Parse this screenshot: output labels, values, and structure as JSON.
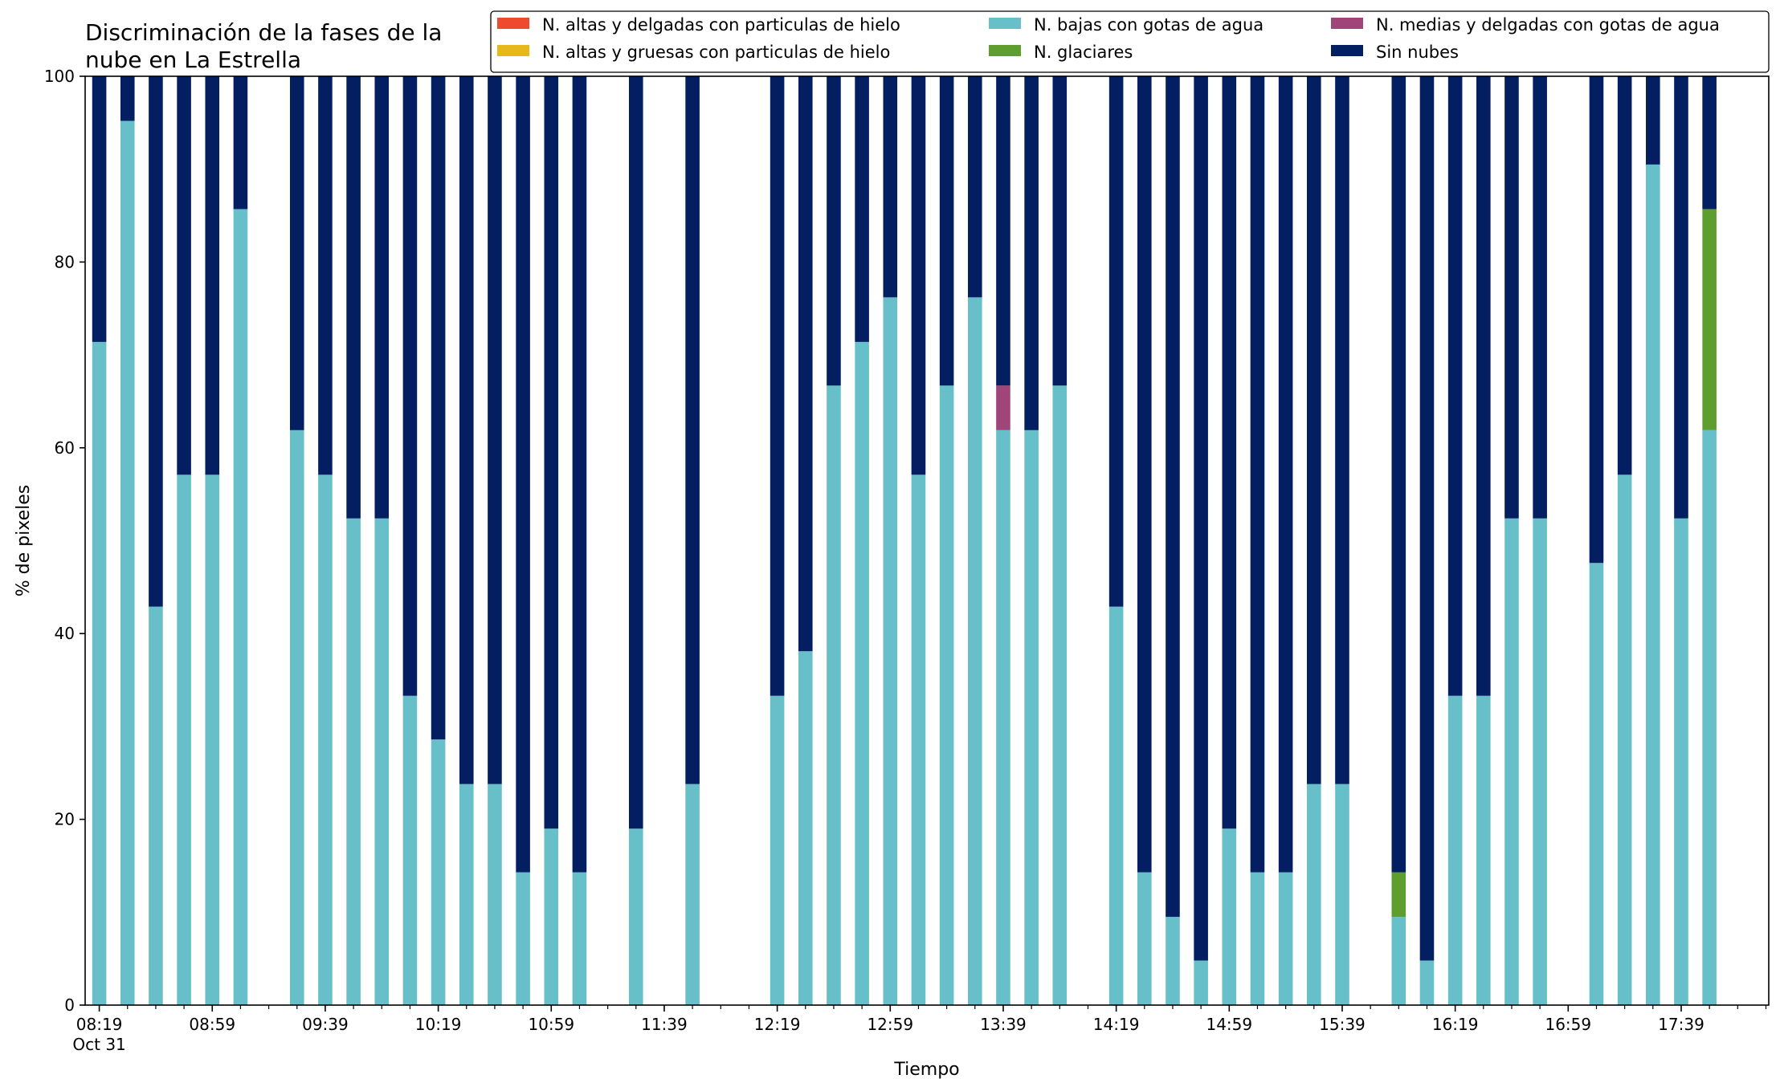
{
  "chart_data": {
    "type": "bar",
    "stacked": true,
    "title": "Discriminación de la fases de la\nnube en La Estrella",
    "xlabel": "Tiempo",
    "ylabel": "% de pixeles",
    "ylim": [
      0,
      100
    ],
    "yticks": [
      0,
      20,
      40,
      60,
      80,
      100
    ],
    "grid": false,
    "legend_position": "top-right",
    "x_date_label": "Oct 31",
    "x_start_minute": 499,
    "x_end_minute": 1080,
    "x_step_minutes": 10,
    "x_tick_labels": [
      {
        "minute": 499,
        "label": "08:19"
      },
      {
        "minute": 539,
        "label": "08:59"
      },
      {
        "minute": 579,
        "label": "09:39"
      },
      {
        "minute": 619,
        "label": "10:19"
      },
      {
        "minute": 659,
        "label": "10:59"
      },
      {
        "minute": 699,
        "label": "11:39"
      },
      {
        "minute": 739,
        "label": "12:19"
      },
      {
        "minute": 779,
        "label": "12:59"
      },
      {
        "minute": 819,
        "label": "13:39"
      },
      {
        "minute": 859,
        "label": "14:19"
      },
      {
        "minute": 899,
        "label": "14:59"
      },
      {
        "minute": 939,
        "label": "15:39"
      },
      {
        "minute": 979,
        "label": "16:19"
      },
      {
        "minute": 1019,
        "label": "16:59"
      },
      {
        "minute": 1059,
        "label": "17:39"
      }
    ],
    "series_order": [
      "ice_thin",
      "ice_thick",
      "low_water",
      "glacier",
      "mid_water",
      "clear"
    ],
    "series": [
      {
        "key": "ice_thin",
        "name": "N. altas y delgadas con particulas de hielo",
        "color": "#ef4a2d"
      },
      {
        "key": "ice_thick",
        "name": "N. altas y gruesas con particulas de hielo",
        "color": "#e6b81c"
      },
      {
        "key": "low_water",
        "name": "N. bajas con gotas de agua",
        "color": "#67bfca"
      },
      {
        "key": "glacier",
        "name": "N. glaciares",
        "color": "#5e9e2e"
      },
      {
        "key": "mid_water",
        "name": "N. medias y delgadas con gotas de agua",
        "color": "#a0457a"
      },
      {
        "key": "clear",
        "name": "Sin nubes",
        "color": "#031e61"
      }
    ],
    "data": [
      {
        "time": "08:19",
        "low_water": 71.4,
        "clear": 28.6
      },
      {
        "time": "08:29",
        "low_water": 95.2,
        "clear": 4.8
      },
      {
        "time": "08:39",
        "low_water": 42.9,
        "clear": 57.1
      },
      {
        "time": "08:49",
        "low_water": 57.1,
        "clear": 42.9
      },
      {
        "time": "08:59",
        "low_water": 57.1,
        "clear": 42.9
      },
      {
        "time": "09:09",
        "low_water": 85.7,
        "clear": 14.3
      },
      {
        "time": "09:29",
        "low_water": 61.9,
        "clear": 38.1
      },
      {
        "time": "09:39",
        "low_water": 57.1,
        "clear": 42.9
      },
      {
        "time": "09:49",
        "low_water": 52.4,
        "clear": 47.6
      },
      {
        "time": "09:59",
        "low_water": 52.4,
        "clear": 47.6
      },
      {
        "time": "10:09",
        "low_water": 33.3,
        "clear": 66.7
      },
      {
        "time": "10:19",
        "low_water": 28.6,
        "clear": 71.4
      },
      {
        "time": "10:29",
        "low_water": 23.8,
        "clear": 76.2
      },
      {
        "time": "10:39",
        "low_water": 23.8,
        "clear": 76.2
      },
      {
        "time": "10:49",
        "low_water": 14.3,
        "clear": 85.7
      },
      {
        "time": "10:59",
        "low_water": 19.0,
        "clear": 81.0
      },
      {
        "time": "11:09",
        "low_water": 14.3,
        "clear": 85.7
      },
      {
        "time": "11:29",
        "low_water": 19.0,
        "clear": 81.0
      },
      {
        "time": "11:49",
        "low_water": 23.8,
        "clear": 76.2
      },
      {
        "time": "12:19",
        "low_water": 33.3,
        "clear": 66.7
      },
      {
        "time": "12:29",
        "low_water": 38.1,
        "clear": 61.9
      },
      {
        "time": "12:39",
        "low_water": 66.7,
        "clear": 33.3
      },
      {
        "time": "12:49",
        "low_water": 71.4,
        "clear": 28.6
      },
      {
        "time": "12:59",
        "low_water": 76.2,
        "clear": 23.8
      },
      {
        "time": "13:09",
        "low_water": 57.1,
        "clear": 42.9
      },
      {
        "time": "13:19",
        "low_water": 66.7,
        "clear": 33.3
      },
      {
        "time": "13:29",
        "low_water": 76.2,
        "clear": 23.8
      },
      {
        "time": "13:39",
        "low_water": 61.9,
        "mid_water": 4.8,
        "clear": 33.3
      },
      {
        "time": "13:49",
        "low_water": 61.9,
        "clear": 38.1
      },
      {
        "time": "13:59",
        "low_water": 66.7,
        "clear": 33.3
      },
      {
        "time": "14:19",
        "low_water": 42.9,
        "clear": 57.1
      },
      {
        "time": "14:29",
        "low_water": 14.3,
        "clear": 85.7
      },
      {
        "time": "14:39",
        "low_water": 9.5,
        "clear": 90.5
      },
      {
        "time": "14:49",
        "low_water": 4.8,
        "clear": 95.2
      },
      {
        "time": "14:59",
        "low_water": 19.0,
        "clear": 81.0
      },
      {
        "time": "15:09",
        "low_water": 14.3,
        "clear": 85.7
      },
      {
        "time": "15:19",
        "low_water": 14.3,
        "clear": 85.7
      },
      {
        "time": "15:29",
        "low_water": 23.8,
        "clear": 76.2
      },
      {
        "time": "15:39",
        "low_water": 23.8,
        "clear": 76.2
      },
      {
        "time": "15:59",
        "low_water": 9.5,
        "glacier": 4.8,
        "clear": 85.7
      },
      {
        "time": "16:09",
        "low_water": 4.8,
        "clear": 95.2
      },
      {
        "time": "16:19",
        "low_water": 33.3,
        "clear": 66.7
      },
      {
        "time": "16:29",
        "low_water": 33.3,
        "clear": 66.7
      },
      {
        "time": "16:39",
        "low_water": 52.4,
        "clear": 47.6
      },
      {
        "time": "16:49",
        "low_water": 52.4,
        "clear": 47.6
      },
      {
        "time": "17:09",
        "low_water": 47.6,
        "clear": 52.4
      },
      {
        "time": "17:19",
        "low_water": 57.1,
        "clear": 42.9
      },
      {
        "time": "17:29",
        "low_water": 90.5,
        "clear": 9.5
      },
      {
        "time": "17:39",
        "low_water": 52.4,
        "clear": 47.6
      },
      {
        "time": "17:49",
        "low_water": 61.9,
        "glacier": 23.8,
        "clear": 14.3
      }
    ]
  }
}
